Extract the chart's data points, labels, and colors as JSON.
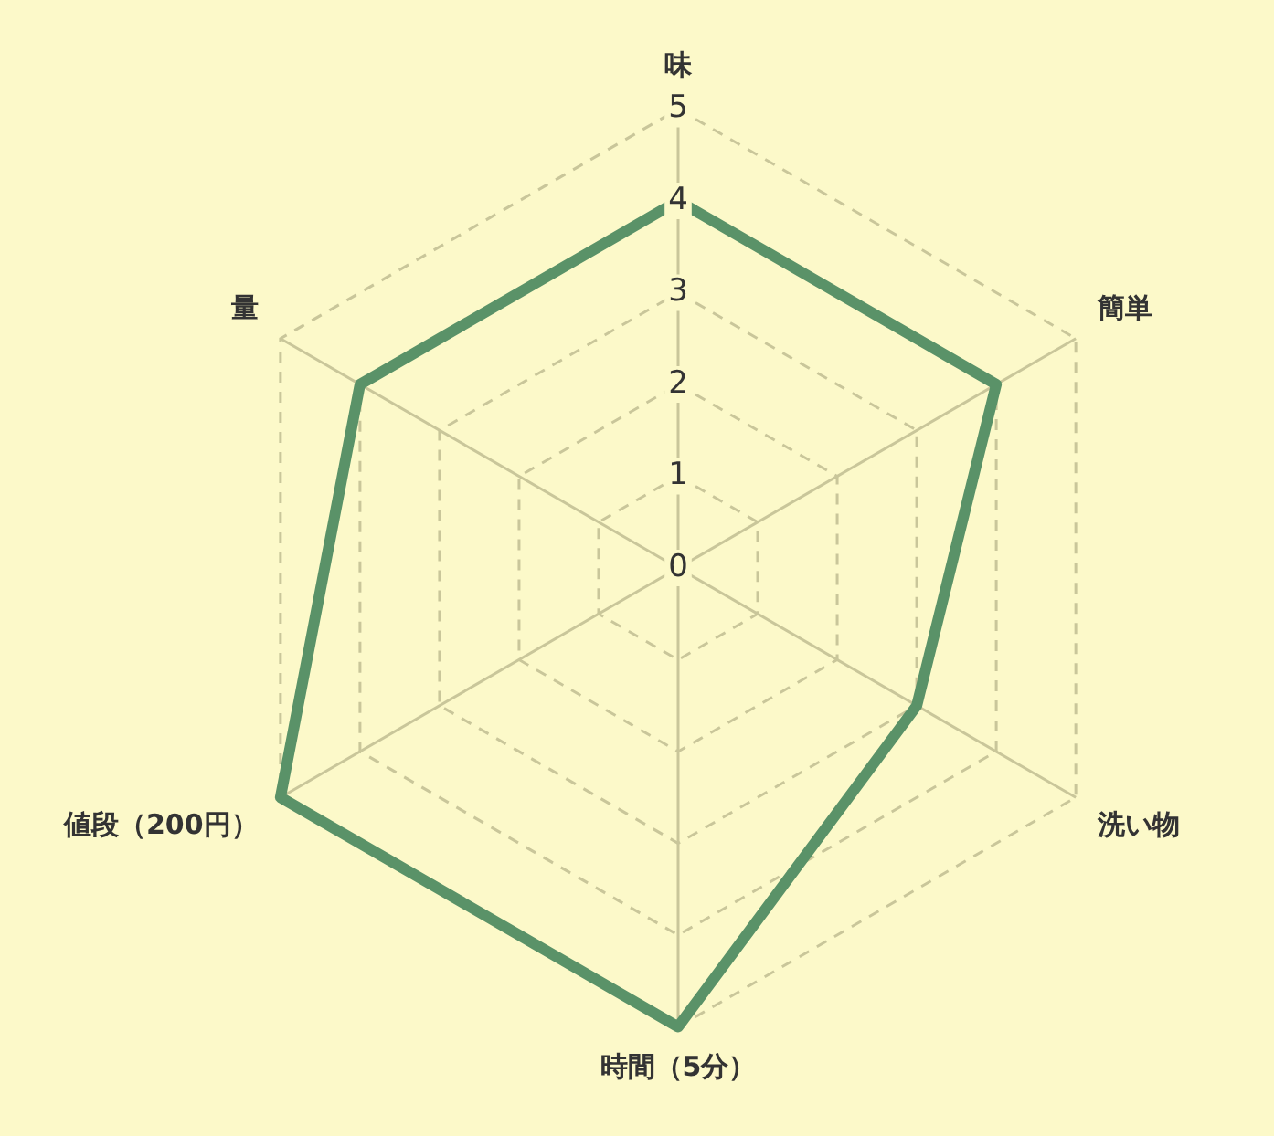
{
  "chart_data": {
    "type": "radar",
    "categories": [
      "味",
      "簡単",
      "洗い物",
      "時間（5分）",
      "値段（200円）",
      "量"
    ],
    "series": [
      {
        "color": "#5a9268",
        "values": [
          4,
          4,
          3,
          5,
          5,
          4
        ]
      }
    ],
    "ylim": [
      0,
      5
    ],
    "yticks": [
      0,
      1,
      2,
      3,
      4,
      5
    ],
    "grid": true,
    "legend": false,
    "marker": "none",
    "line_style": "solid"
  }
}
